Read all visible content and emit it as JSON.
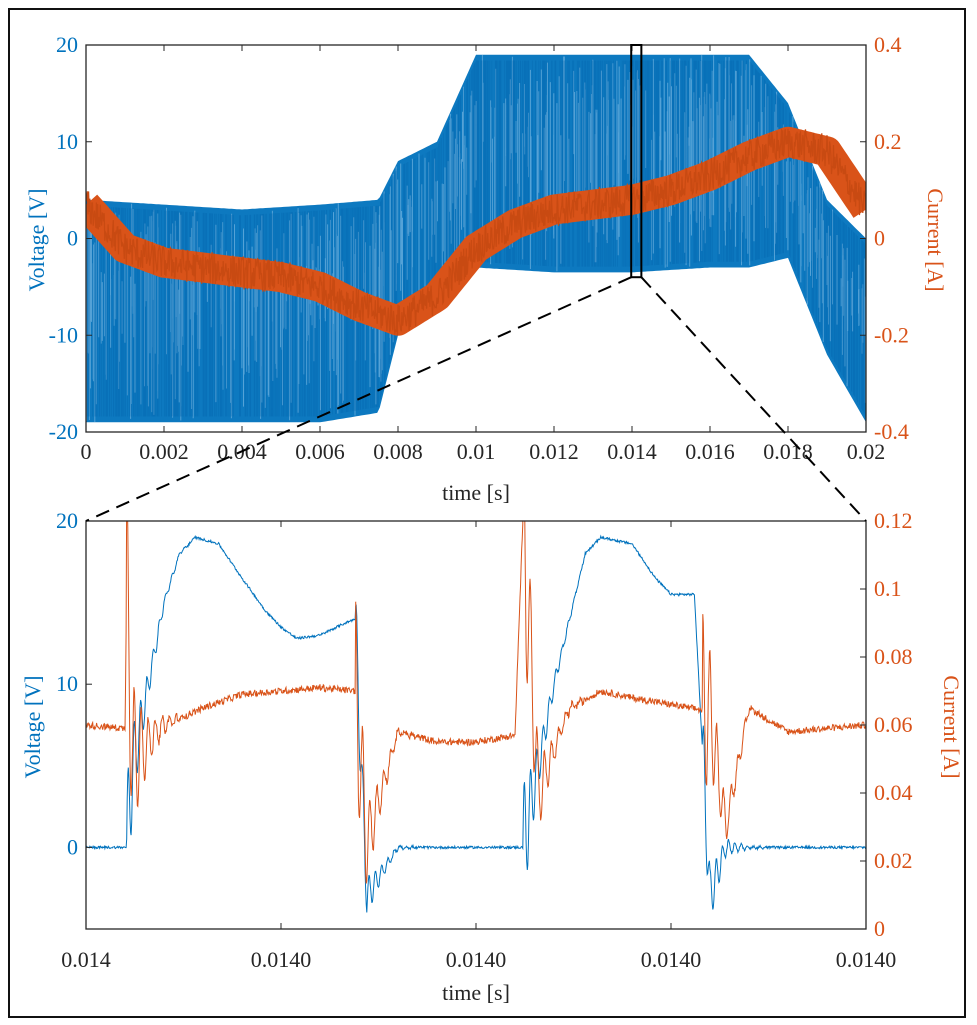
{
  "colors": {
    "voltage": "#0072bd",
    "current": "#d95319",
    "axis": "#262626"
  },
  "chart_data": [
    {
      "type": "line",
      "xlabel": "time [s]",
      "ylabel_left": "Voltage [V]",
      "ylabel_right": "Current [A]",
      "xlim": [
        0,
        0.02
      ],
      "ylim_left": [
        -20,
        20
      ],
      "ylim_right": [
        -0.4,
        0.4
      ],
      "xticks": [
        "0",
        "0.002",
        "0.004",
        "0.006",
        "0.008",
        "0.01",
        "0.012",
        "0.014",
        "0.016",
        "0.018",
        "0.02"
      ],
      "yticks_left": [
        "20",
        "10",
        "0",
        "-10",
        "-20"
      ],
      "yticks_right": [
        "0.4",
        "0.2",
        "0",
        "-0.2",
        "-0.4"
      ],
      "grid": false,
      "zoom_window": {
        "x": [
          0.01398,
          0.01424
        ],
        "y_left": [
          -4,
          20
        ]
      },
      "series": [
        {
          "name": "",
          "axis": "left",
          "description_values": "PWM switching between upper and lower envelope",
          "upper_envelope": {
            "x": [
              0,
              0.002,
              0.004,
              0.006,
              0.0075,
              0.008,
              0.009,
              0.01,
              0.012,
              0.014,
              0.016,
              0.017,
              0.018,
              0.019,
              0.02
            ],
            "y": [
              4,
              3.5,
              3,
              3.5,
              4,
              8,
              10,
              19,
              19,
              19,
              19,
              19,
              14,
              4,
              0
            ]
          },
          "lower_envelope": {
            "x": [
              0,
              0.002,
              0.004,
              0.006,
              0.0075,
              0.008,
              0.009,
              0.01,
              0.012,
              0.014,
              0.016,
              0.017,
              0.018,
              0.019,
              0.02
            ],
            "y": [
              -19,
              -19,
              -19,
              -19,
              -18,
              -10,
              -5,
              -3,
              -3.5,
              -3.5,
              -3,
              -3,
              -2,
              -12,
              -19
            ]
          }
        },
        {
          "name": "",
          "axis": "right",
          "x": [
            0,
            0.001,
            0.002,
            0.003,
            0.004,
            0.005,
            0.006,
            0.007,
            0.008,
            0.009,
            0.01,
            0.011,
            0.012,
            0.013,
            0.014,
            0.015,
            0.016,
            0.017,
            0.018,
            0.019,
            0.02
          ],
          "y": [
            0.07,
            -0.02,
            -0.05,
            -0.06,
            -0.07,
            -0.08,
            -0.1,
            -0.14,
            -0.17,
            -0.12,
            -0.02,
            0.03,
            0.06,
            0.07,
            0.08,
            0.1,
            0.13,
            0.17,
            0.2,
            0.18,
            0.06
          ]
        }
      ]
    },
    {
      "type": "line",
      "xlabel": "time [s]",
      "ylabel_left": "Voltage [V]",
      "ylabel_right": "Current [A]",
      "xlim": [
        0,
        1
      ],
      "ylim_left": [
        -5,
        20
      ],
      "ylim_right": [
        0,
        0.12
      ],
      "xticks": [
        "0.014",
        "0.0140",
        "0.0140",
        "0.0140",
        "0.0140"
      ],
      "yticks_left": [
        "20",
        "10",
        "0"
      ],
      "yticks_right": [
        "0.12",
        "0.1",
        "0.08",
        "0.06",
        "0.04",
        "0.02",
        "0"
      ],
      "grid": false,
      "series": [
        {
          "name": "",
          "axis": "left",
          "x": [
            0,
            0.05,
            0.052,
            0.06,
            0.1,
            0.12,
            0.14,
            0.17,
            0.2,
            0.23,
            0.25,
            0.27,
            0.3,
            0.33,
            0.345,
            0.36,
            0.4,
            0.45,
            0.5,
            0.55,
            0.56,
            0.58,
            0.6,
            0.64,
            0.66,
            0.7,
            0.73,
            0.75,
            0.78,
            0.8,
            0.82,
            0.85,
            0.9,
            0.95,
            1
          ],
          "y": [
            0,
            0,
            0,
            5,
            15,
            18,
            19,
            18.6,
            16.5,
            14.5,
            13.5,
            12.8,
            13,
            13.7,
            14,
            -3,
            0,
            0,
            0,
            0,
            0,
            5,
            10,
            18,
            19,
            18.6,
            16.5,
            15.5,
            15.5,
            -3,
            0,
            0,
            0,
            0,
            0
          ]
        },
        {
          "name": "",
          "axis": "right",
          "x": [
            0,
            0.05,
            0.052,
            0.06,
            0.1,
            0.15,
            0.2,
            0.25,
            0.3,
            0.345,
            0.36,
            0.4,
            0.45,
            0.5,
            0.55,
            0.56,
            0.58,
            0.62,
            0.66,
            0.7,
            0.75,
            0.8,
            0.82,
            0.85,
            0.9,
            0.95,
            1
          ],
          "y": [
            0.06,
            0.059,
            0.1,
            0.05,
            0.06,
            0.065,
            0.069,
            0.07,
            0.071,
            0.07,
            0.025,
            0.058,
            0.055,
            0.055,
            0.057,
            0.12,
            0.04,
            0.065,
            0.07,
            0.068,
            0.066,
            0.064,
            0.03,
            0.065,
            0.058,
            0.059,
            0.06
          ]
        }
      ]
    }
  ]
}
